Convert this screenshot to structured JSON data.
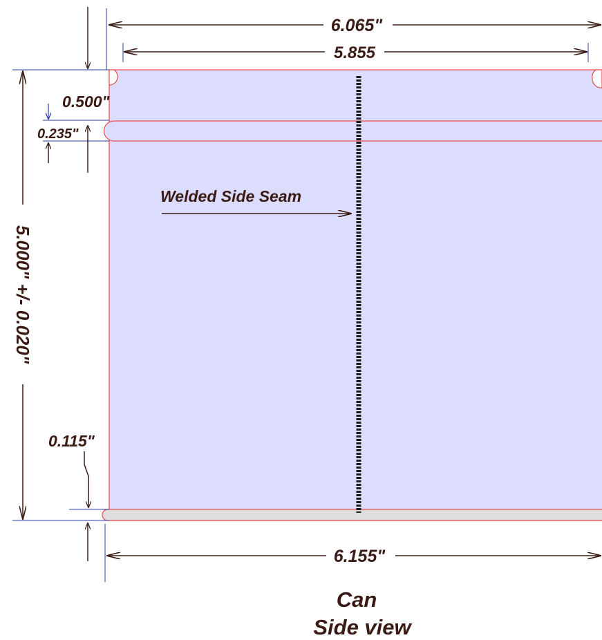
{
  "diagram": {
    "dimensions": {
      "outer_width": "6.065\"",
      "inner_width": "5.855",
      "height": "5.000\" +/- 0.020\"",
      "top_bead_offset": "0.500\"",
      "bead_height": "0.235\"",
      "bottom_flange": "0.115\"",
      "bottom_width": "6.155\""
    },
    "seam_label": "Welded Side Seam",
    "caption": {
      "line1": "Can",
      "line2": "Side view"
    },
    "colors": {
      "can_body_fill": "#dcdcfc",
      "outline": "#e84a4a",
      "dimension_line": "#3a1a14",
      "extension_line": "#2a3aa8",
      "bottom_flange_fill": "#dedede",
      "seam": "#1a1a1a"
    }
  }
}
